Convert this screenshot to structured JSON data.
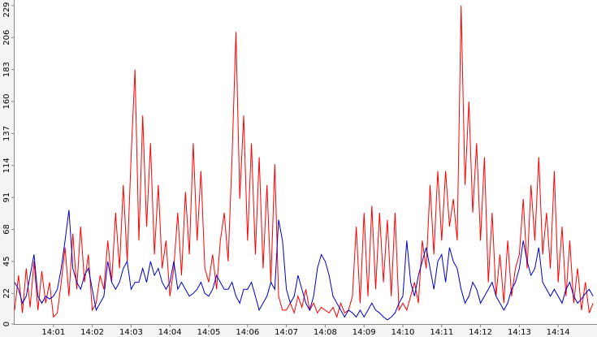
{
  "chart_data": {
    "type": "line",
    "x": [
      0,
      0.1,
      0.2,
      0.3,
      0.4,
      0.5,
      0.6,
      0.7,
      0.8,
      0.9,
      1,
      1.1,
      1.2,
      1.3,
      1.4,
      1.5,
      1.6,
      1.7,
      1.8,
      1.9,
      2,
      2.1,
      2.2,
      2.3,
      2.4,
      2.5,
      2.6,
      2.7,
      2.8,
      2.9,
      3,
      3.1,
      3.2,
      3.3,
      3.4,
      3.5,
      3.6,
      3.7,
      3.8,
      3.9,
      4,
      4.1,
      4.2,
      4.3,
      4.4,
      4.5,
      4.6,
      4.7,
      4.8,
      4.9,
      5,
      5.1,
      5.2,
      5.3,
      5.4,
      5.5,
      5.6,
      5.7,
      5.8,
      5.9,
      6,
      6.1,
      6.2,
      6.3,
      6.4,
      6.5,
      6.6,
      6.7,
      6.8,
      6.9,
      7,
      7.1,
      7.2,
      7.3,
      7.4,
      7.5,
      7.6,
      7.7,
      7.8,
      7.9,
      8,
      8.1,
      8.2,
      8.3,
      8.4,
      8.5,
      8.6,
      8.7,
      8.8,
      8.9,
      9,
      9.1,
      9.2,
      9.3,
      9.4,
      9.5,
      9.6,
      9.7,
      9.8,
      9.9,
      10,
      10.1,
      10.2,
      10.3,
      10.4,
      10.5,
      10.6,
      10.7,
      10.8,
      10.9,
      11,
      11.1,
      11.2,
      11.3,
      11.4,
      11.5,
      11.6,
      11.7,
      11.8,
      11.9,
      12,
      12.1,
      12.2,
      12.3,
      12.4,
      12.5,
      12.6,
      12.7,
      12.8,
      12.9,
      13,
      13.1,
      13.2,
      13.3,
      13.4,
      13.5,
      13.6,
      13.7,
      13.8,
      13.9,
      14,
      14.1,
      14.2,
      14.3,
      14.4,
      14.5,
      14.6,
      14.7,
      14.8,
      14.9
    ],
    "series": [
      {
        "color": "#ff0000",
        "values": [
          10,
          35,
          8,
          40,
          12,
          45,
          10,
          38,
          15,
          30,
          5,
          8,
          30,
          55,
          20,
          65,
          25,
          70,
          30,
          50,
          10,
          15,
          35,
          25,
          60,
          30,
          80,
          40,
          100,
          45,
          120,
          183,
          60,
          150,
          70,
          130,
          50,
          100,
          40,
          60,
          20,
          40,
          80,
          35,
          95,
          50,
          130,
          60,
          110,
          40,
          30,
          50,
          25,
          60,
          80,
          45,
          120,
          210,
          90,
          150,
          60,
          130,
          50,
          120,
          40,
          100,
          30,
          115,
          20,
          10,
          10,
          15,
          8,
          20,
          12,
          25,
          10,
          15,
          8,
          12,
          10,
          8,
          12,
          5,
          15,
          8,
          10,
          20,
          70,
          15,
          80,
          20,
          85,
          25,
          80,
          30,
          75,
          20,
          80,
          10,
          15,
          10,
          20,
          30,
          15,
          60,
          40,
          100,
          50,
          110,
          60,
          110,
          70,
          90,
          60,
          229,
          100,
          160,
          80,
          130,
          60,
          120,
          30,
          80,
          20,
          50,
          15,
          60,
          20,
          40,
          50,
          90,
          40,
          100,
          60,
          120,
          50,
          80,
          40,
          110,
          30,
          70,
          20,
          60,
          15,
          40,
          10,
          30,
          8,
          15
        ]
      },
      {
        "color": "#0000cc",
        "values": [
          30,
          25,
          15,
          20,
          35,
          50,
          20,
          15,
          20,
          18,
          20,
          25,
          40,
          60,
          82,
          40,
          30,
          25,
          35,
          40,
          25,
          10,
          15,
          20,
          45,
          30,
          25,
          30,
          40,
          45,
          25,
          30,
          30,
          40,
          30,
          45,
          35,
          40,
          30,
          25,
          30,
          45,
          25,
          30,
          25,
          20,
          22,
          25,
          30,
          22,
          20,
          25,
          35,
          30,
          25,
          25,
          30,
          20,
          15,
          25,
          25,
          30,
          20,
          10,
          15,
          20,
          30,
          25,
          75,
          60,
          25,
          15,
          20,
          35,
          25,
          15,
          10,
          20,
          40,
          50,
          45,
          35,
          20,
          15,
          10,
          5,
          10,
          8,
          5,
          10,
          5,
          10,
          15,
          10,
          8,
          5,
          3,
          5,
          8,
          15,
          20,
          60,
          30,
          20,
          35,
          45,
          55,
          40,
          25,
          45,
          50,
          30,
          55,
          45,
          40,
          25,
          15,
          20,
          30,
          25,
          15,
          20,
          25,
          30,
          20,
          15,
          10,
          15,
          25,
          30,
          40,
          60,
          45,
          35,
          40,
          55,
          30,
          25,
          20,
          25,
          20,
          15,
          25,
          30,
          20,
          15,
          18,
          22,
          25,
          20
        ]
      }
    ],
    "xlim": [
      0,
      15
    ],
    "xticks": [
      {
        "value": 1,
        "label": "14:01"
      },
      {
        "value": 2,
        "label": "14:02"
      },
      {
        "value": 3,
        "label": "14:03"
      },
      {
        "value": 4,
        "label": "14:04"
      },
      {
        "value": 5,
        "label": "14:05"
      },
      {
        "value": 6,
        "label": "14:06"
      },
      {
        "value": 7,
        "label": "14:07"
      },
      {
        "value": 8,
        "label": "14:08"
      },
      {
        "value": 9,
        "label": "14:09"
      },
      {
        "value": 10,
        "label": "14:10"
      },
      {
        "value": 11,
        "label": "14:11"
      },
      {
        "value": 12,
        "label": "14:12"
      },
      {
        "value": 13,
        "label": "14:13"
      },
      {
        "value": 14,
        "label": "14:14"
      }
    ],
    "ylim": [
      0,
      233
    ],
    "yticks": [
      0,
      22,
      45,
      68,
      91,
      114,
      137,
      160,
      183,
      206,
      229
    ]
  }
}
